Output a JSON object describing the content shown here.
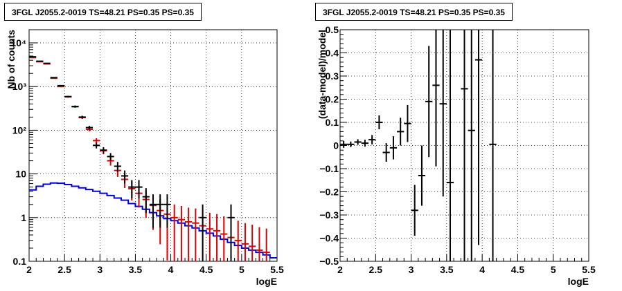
{
  "chart_data": [
    {
      "type": "line",
      "title": "3FGL J2055.2-0019 TS=48.21 PS=0.35 PS=0.35",
      "xlabel": "logE",
      "ylabel": "Nb of counts",
      "xlim": [
        2,
        5.5
      ],
      "ylim": [
        0.1,
        20000
      ],
      "ylog": true,
      "grid": true,
      "x_ticks": [
        "2",
        "2.5",
        "3",
        "3.5",
        "4",
        "4.5",
        "5",
        "5.5"
      ],
      "y_ticks": [
        "0.1",
        "1",
        "10",
        "10²",
        "10³",
        "10⁴"
      ],
      "series": [
        {
          "color": "#000000",
          "style": "data points with error bars",
          "x": [
            2.05,
            2.15,
            2.25,
            2.35,
            2.45,
            2.55,
            2.65,
            2.75,
            2.85,
            2.95,
            3.05,
            3.15,
            3.25,
            3.35,
            3.45,
            3.55,
            3.65,
            3.75,
            3.85,
            3.95,
            4.45,
            4.85
          ],
          "y": [
            4800,
            3800,
            3400,
            1600,
            1050,
            590,
            350,
            200,
            115,
            45,
            35,
            25,
            15,
            9,
            5,
            5,
            3,
            2,
            2,
            2,
            1,
            1
          ]
        },
        {
          "color": "#dd0000",
          "style": "model points with error bars",
          "x": [
            2.05,
            2.15,
            2.25,
            2.35,
            2.45,
            2.55,
            2.65,
            2.75,
            2.85,
            2.95,
            3.05,
            3.15,
            3.25,
            3.35,
            3.45,
            3.55,
            3.65,
            3.75,
            3.85,
            3.95,
            4.05,
            4.15,
            4.25,
            4.35,
            4.45,
            4.55,
            4.65,
            4.75,
            4.85,
            4.95,
            5.05,
            5.15,
            5.25,
            5.35
          ],
          "y": [
            4600,
            3700,
            3300,
            1550,
            1000,
            580,
            345,
            195,
            105,
            58,
            34,
            20,
            12,
            7.5,
            4.6,
            3.6,
            2.6,
            1.9,
            1.45,
            1.2,
            1.0,
            0.9,
            0.8,
            0.75,
            0.65,
            0.55,
            0.5,
            0.42,
            0.35,
            0.3,
            0.25,
            0.22,
            0.18,
            0.16
          ]
        },
        {
          "color": "#0000dd",
          "style": "step histogram",
          "x": [
            2.05,
            2.15,
            2.25,
            2.35,
            2.45,
            2.55,
            2.65,
            2.75,
            2.85,
            2.95,
            3.05,
            3.15,
            3.25,
            3.35,
            3.45,
            3.55,
            3.65,
            3.75,
            3.85,
            3.95,
            4.05,
            4.15,
            4.25,
            4.35,
            4.45,
            4.55,
            4.65,
            4.75,
            4.85,
            4.95,
            5.05,
            5.15,
            5.25,
            5.35,
            5.45
          ],
          "y": [
            4.3,
            5.2,
            5.8,
            6.2,
            6.1,
            5.7,
            5.2,
            4.8,
            4.4,
            4.0,
            3.6,
            3.2,
            2.8,
            2.5,
            2.1,
            1.8,
            1.55,
            1.3,
            1.1,
            0.95,
            0.85,
            0.75,
            0.65,
            0.58,
            0.5,
            0.44,
            0.38,
            0.32,
            0.27,
            0.23,
            0.2,
            0.18,
            0.16,
            0.14,
            0.12
          ]
        }
      ]
    },
    {
      "type": "scatter",
      "title": "3FGL J2055.2-0019 TS=48.21 PS=0.35 PS=0.35",
      "xlabel": "logE",
      "ylabel": "(data-model)/model",
      "xlim": [
        2,
        5.5
      ],
      "ylim": [
        -0.5,
        0.5
      ],
      "grid": true,
      "x_ticks": [
        "2",
        "2.5",
        "3",
        "3.5",
        "4",
        "4.5",
        "5",
        "5.5"
      ],
      "y_ticks": [
        "−0.5",
        "−0.4",
        "−0.3",
        "−0.2",
        "−0.1",
        "0",
        "0.1",
        "0.2",
        "0.3",
        "0.4",
        "0.5"
      ],
      "series": [
        {
          "color": "#000000",
          "style": "points with error bars",
          "x": [
            2.05,
            2.15,
            2.25,
            2.35,
            2.45,
            2.55,
            2.65,
            2.75,
            2.85,
            2.95,
            3.05,
            3.15,
            3.25,
            3.35,
            3.45,
            3.55,
            3.75,
            3.85,
            3.95,
            4.15
          ],
          "y": [
            0.005,
            0.005,
            0.015,
            0.01,
            0.025,
            0.1,
            -0.03,
            -0.01,
            0.06,
            0.095,
            -0.28,
            -0.13,
            0.19,
            0.26,
            0.18,
            -0.16,
            0.245,
            0.065,
            0.37,
            0.005
          ],
          "err": [
            0.015,
            0.012,
            0.012,
            0.015,
            0.02,
            0.03,
            0.04,
            0.05,
            0.06,
            0.08,
            0.11,
            0.13,
            0.24,
            0.35,
            0.4,
            0.7,
            0.8,
            0.8,
            0.8,
            0.9
          ]
        }
      ]
    }
  ]
}
